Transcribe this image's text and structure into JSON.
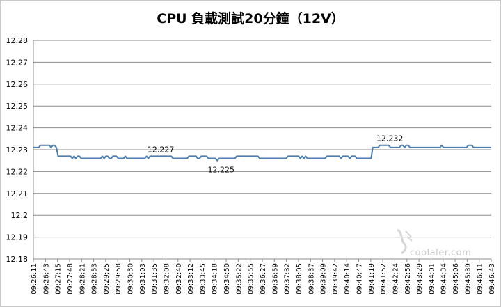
{
  "chart_data": {
    "type": "line",
    "title": "CPU 負載測試20分鐘（12V）",
    "ylim": [
      12.18,
      12.28
    ],
    "yticks": [
      "12.18",
      "12.19",
      "12.2",
      "12.21",
      "12.22",
      "12.23",
      "12.24",
      "12.25",
      "12.26",
      "12.27",
      "12.28"
    ],
    "xticks": [
      "09:26:11",
      "09:26:43",
      "09:27:15",
      "09:27:48",
      "09:28:21",
      "09:28:53",
      "09:29:25",
      "09:29:58",
      "09:30:30",
      "09:31:03",
      "09:31:35",
      "09:32:08",
      "09:32:40",
      "09:33:12",
      "09:33:45",
      "09:34:18",
      "09:34:50",
      "09:35:22",
      "09:35:55",
      "09:36:27",
      "09:36:59",
      "09:37:32",
      "09:38:05",
      "09:38:37",
      "09:39:09",
      "09:39:42",
      "09:40:14",
      "09:40:47",
      "09:41:19",
      "09:41:52",
      "09:42:24",
      "09:42:56",
      "09:43:29",
      "09:44:01",
      "09:44:34",
      "09:45:06",
      "09:45:39",
      "09:46:11",
      "09:46:43"
    ],
    "grid": true,
    "legend": "none",
    "color": "#4a7eb3",
    "annotations": [
      {
        "text": "12.227",
        "x": "09:31:35",
        "y": 12.227
      },
      {
        "text": "12.225",
        "x": "09:34:18",
        "y": 12.225
      },
      {
        "text": "12.232",
        "x": "09:41:52",
        "y": 12.232
      }
    ],
    "series": [
      {
        "values": [
          12.231,
          12.231,
          12.231,
          12.231,
          12.232,
          12.232,
          12.232,
          12.232,
          12.232,
          12.232,
          12.231,
          12.232,
          12.232,
          12.231,
          12.227,
          12.227,
          12.227,
          12.227,
          12.227,
          12.227,
          12.227,
          12.227,
          12.226,
          12.227,
          12.226,
          12.227,
          12.227,
          12.226,
          12.226,
          12.226,
          12.226,
          12.226,
          12.226,
          12.226,
          12.226,
          12.226,
          12.226,
          12.226,
          12.226,
          12.227,
          12.226,
          12.227,
          12.227,
          12.226,
          12.226,
          12.227,
          12.227,
          12.227,
          12.226,
          12.226,
          12.226,
          12.226,
          12.227,
          12.226,
          12.226,
          12.226,
          12.226,
          12.226,
          12.226,
          12.226,
          12.226,
          12.226,
          12.226,
          12.226,
          12.227,
          12.226,
          12.227,
          12.227,
          12.227,
          12.227,
          12.227,
          12.227,
          12.227,
          12.227,
          12.227,
          12.227,
          12.227,
          12.227,
          12.227,
          12.226,
          12.226,
          12.226,
          12.226,
          12.226,
          12.226,
          12.226,
          12.226,
          12.226,
          12.227,
          12.227,
          12.227,
          12.227,
          12.227,
          12.226,
          12.226,
          12.227,
          12.227,
          12.227,
          12.227,
          12.226,
          12.226,
          12.226,
          12.226,
          12.226,
          12.225,
          12.226,
          12.226,
          12.226,
          12.226,
          12.226,
          12.226,
          12.226,
          12.226,
          12.226,
          12.226,
          12.227,
          12.227,
          12.227,
          12.227,
          12.227,
          12.227,
          12.227,
          12.227,
          12.227,
          12.227,
          12.227,
          12.227,
          12.227,
          12.226,
          12.226,
          12.226,
          12.226,
          12.226,
          12.226,
          12.226,
          12.226,
          12.226,
          12.226,
          12.226,
          12.226,
          12.226,
          12.226,
          12.226,
          12.226,
          12.227,
          12.227,
          12.227,
          12.227,
          12.227,
          12.227,
          12.227,
          12.226,
          12.227,
          12.226,
          12.227,
          12.226,
          12.226,
          12.226,
          12.226,
          12.226,
          12.226,
          12.226,
          12.226,
          12.226,
          12.226,
          12.226,
          12.227,
          12.227,
          12.227,
          12.227,
          12.227,
          12.227,
          12.227,
          12.227,
          12.226,
          12.227,
          12.227,
          12.227,
          12.227,
          12.226,
          12.227,
          12.227,
          12.227,
          12.226,
          12.226,
          12.226,
          12.226,
          12.226,
          12.226,
          12.226,
          12.226,
          12.226,
          12.231,
          12.231,
          12.231,
          12.231,
          12.232,
          12.232,
          12.232,
          12.232,
          12.232,
          12.232,
          12.231,
          12.231,
          12.231,
          12.231,
          12.231,
          12.231,
          12.232,
          12.232,
          12.231,
          12.232,
          12.232,
          12.231,
          12.231,
          12.231,
          12.231,
          12.231,
          12.231,
          12.231,
          12.231,
          12.231,
          12.231,
          12.231,
          12.231,
          12.231,
          12.231,
          12.231,
          12.231,
          12.231,
          12.231,
          12.232,
          12.231,
          12.231,
          12.231,
          12.231,
          12.231,
          12.231,
          12.231,
          12.231,
          12.231,
          12.231,
          12.231,
          12.231,
          12.231,
          12.231,
          12.232,
          12.232,
          12.232,
          12.231,
          12.231,
          12.231,
          12.231,
          12.231,
          12.231,
          12.231,
          12.231,
          12.231,
          12.231,
          12.231
        ]
      }
    ]
  },
  "watermark": {
    "text": "coolaler.com"
  }
}
